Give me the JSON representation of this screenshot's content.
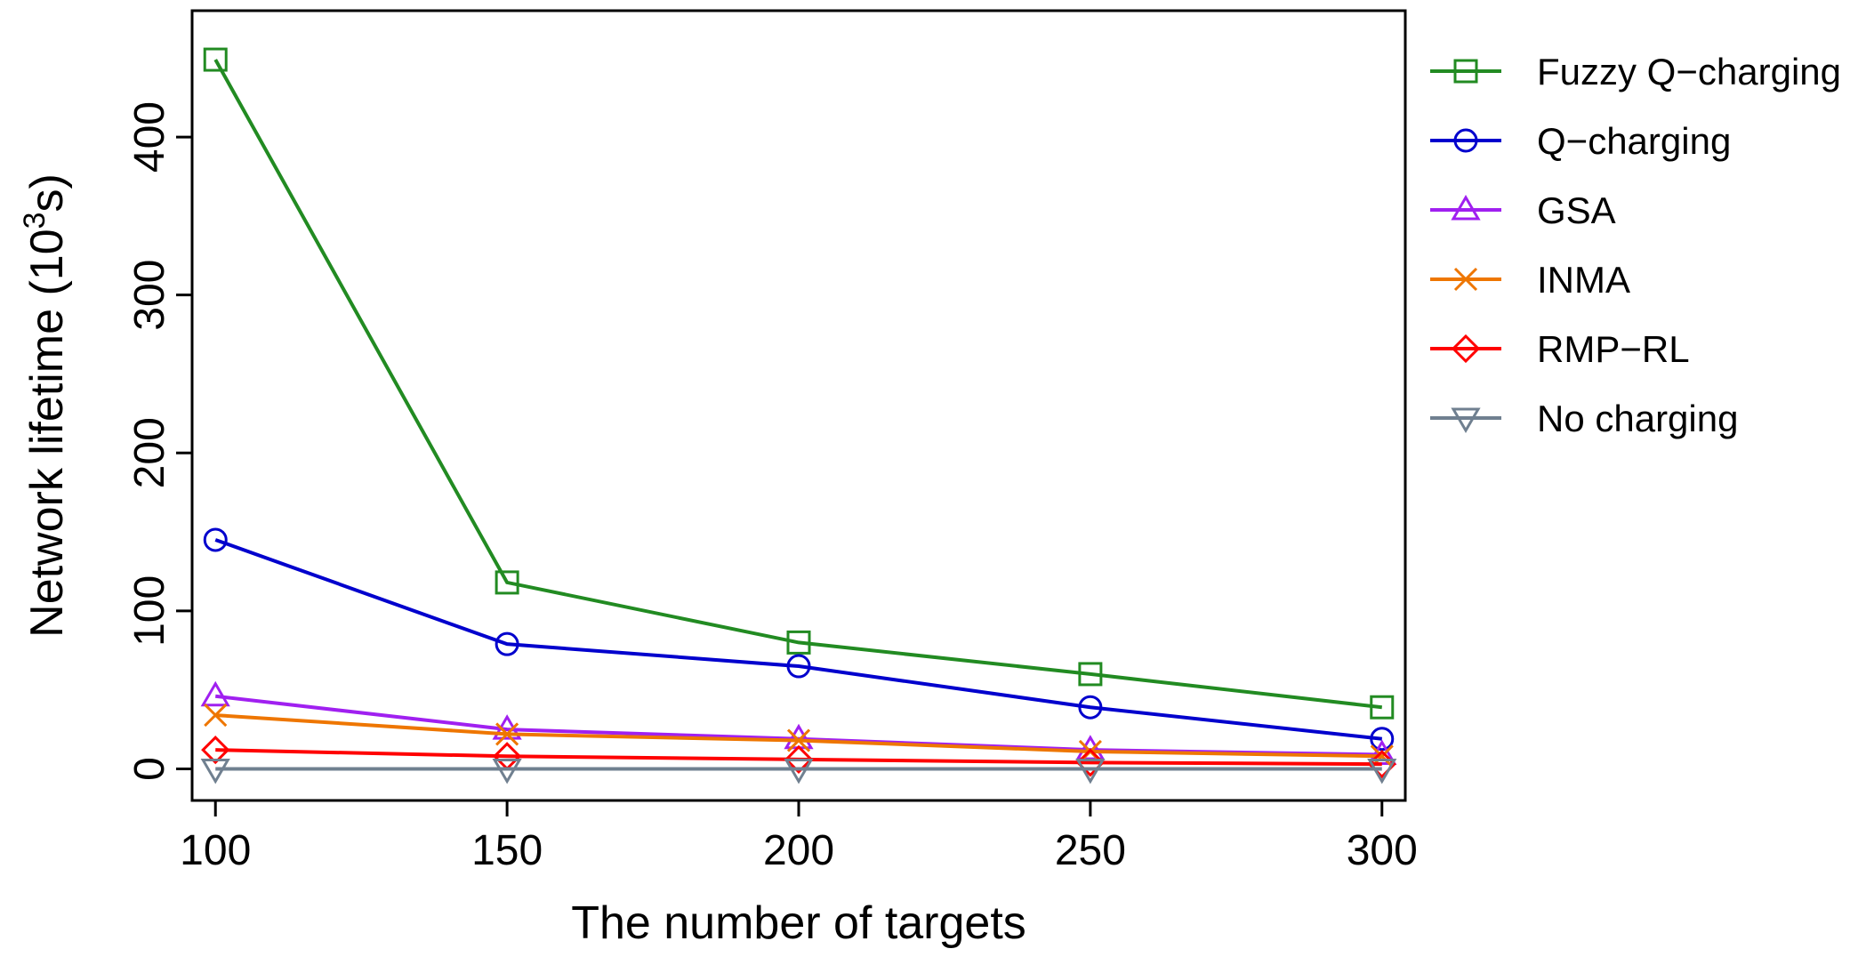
{
  "chart_data": {
    "type": "line",
    "title": "",
    "xlabel": "The number of targets",
    "ylabel": {
      "prefix": "Network lifetime (10",
      "superscript": "3",
      "suffix": "s)"
    },
    "x": [
      100,
      150,
      200,
      250,
      300
    ],
    "xlim": [
      96,
      304
    ],
    "ylim": [
      -20,
      480
    ],
    "x_ticks": [
      "100",
      "150",
      "200",
      "250",
      "300"
    ],
    "y_ticks": [
      "0",
      "100",
      "200",
      "300",
      "400"
    ],
    "grid": false,
    "legend_position": "right",
    "series": [
      {
        "name": "Fuzzy Q−charging",
        "marker": "square",
        "color": "#228B22",
        "values": [
          449,
          118,
          80,
          60,
          39
        ]
      },
      {
        "name": "Q−charging",
        "marker": "circle",
        "color": "#0000CD",
        "values": [
          145,
          79,
          65,
          39,
          19
        ]
      },
      {
        "name": "GSA",
        "marker": "triangle-up",
        "color": "#A020F0",
        "values": [
          46,
          25,
          19,
          12,
          9
        ]
      },
      {
        "name": "INMA",
        "marker": "x",
        "color": "#EE7600",
        "values": [
          34,
          22,
          18,
          11,
          8
        ]
      },
      {
        "name": "RMP−RL",
        "marker": "diamond",
        "color": "#FF0000",
        "values": [
          12,
          8,
          6,
          4,
          3
        ]
      },
      {
        "name": "No charging",
        "marker": "triangle-down",
        "color": "#708090",
        "values": [
          0,
          0,
          0,
          0,
          0
        ]
      }
    ]
  }
}
